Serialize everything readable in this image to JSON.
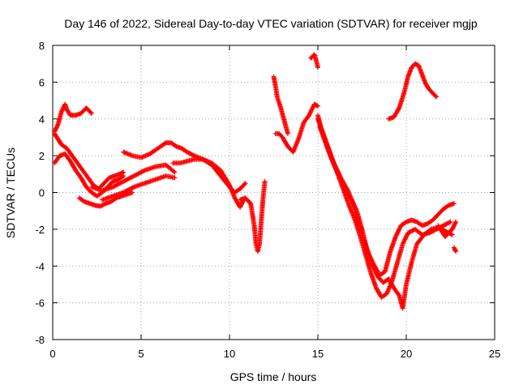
{
  "chart_data": {
    "type": "scatter",
    "title": "Day 146 of 2022, Sidereal Day-to-day VTEC variation (SDTVAR) for receiver mgjp",
    "xlabel": "GPS time / hours",
    "ylabel": "SDTVAR / TECUs",
    "xlim": [
      0,
      25
    ],
    "ylim": [
      -8,
      8
    ],
    "xticks": [
      0,
      5,
      10,
      15,
      20,
      25
    ],
    "yticks": [
      -8,
      -6,
      -4,
      -2,
      0,
      2,
      4,
      6,
      8
    ],
    "grid": true,
    "marker": "+",
    "color": "#ff0000",
    "series": [
      {
        "x": [
          0.1,
          0.3,
          0.5,
          0.7,
          0.8,
          1.0,
          1.3,
          1.6,
          1.9,
          2.2
        ],
        "y": [
          3.3,
          3.7,
          4.4,
          4.8,
          4.5,
          4.2,
          4.2,
          4.3,
          4.6,
          4.3
        ]
      },
      {
        "x": [
          0.1,
          0.3,
          0.5,
          0.8,
          1.1,
          1.4,
          1.7,
          2.0,
          2.3,
          2.6,
          2.9,
          3.2,
          3.5,
          3.8,
          4.0
        ],
        "y": [
          3.2,
          2.9,
          2.6,
          2.4,
          2.0,
          1.6,
          1.2,
          0.8,
          0.4,
          0.2,
          0.5,
          0.8,
          0.9,
          1.0,
          1.1
        ]
      },
      {
        "x": [
          0.1,
          0.4,
          0.7,
          1.0,
          1.3,
          1.6,
          1.9,
          2.2,
          2.5,
          2.8,
          3.1,
          3.4,
          3.7,
          4.0
        ],
        "y": [
          1.6,
          2.0,
          2.1,
          1.7,
          1.2,
          0.8,
          0.3,
          0.0,
          -0.2,
          0.0,
          0.3,
          0.6,
          0.7,
          0.9
        ]
      },
      {
        "x": [
          1.5,
          1.8,
          2.1,
          2.4,
          2.7,
          3.0,
          3.3,
          3.6,
          3.9,
          4.2,
          4.5
        ],
        "y": [
          -0.3,
          -0.5,
          -0.6,
          -0.7,
          -0.75,
          -0.6,
          -0.5,
          -0.3,
          -0.2,
          -0.1,
          0.0
        ]
      },
      {
        "x": [
          4.0,
          4.5,
          5.0,
          5.5,
          5.8,
          6.1,
          6.4,
          6.7,
          7.0,
          7.3,
          7.6,
          8.0,
          8.5,
          9.0,
          9.5,
          10.0,
          10.3,
          10.6,
          10.9
        ],
        "y": [
          2.2,
          2.0,
          1.9,
          2.1,
          2.3,
          2.5,
          2.7,
          2.7,
          2.5,
          2.4,
          2.2,
          2.0,
          1.8,
          1.5,
          0.9,
          0.3,
          0.0,
          0.2,
          0.5
        ]
      },
      {
        "x": [
          2.2,
          2.8,
          3.4,
          4.0,
          4.6,
          5.2,
          5.8,
          6.4,
          6.9
        ],
        "y": [
          0.3,
          0.1,
          0.3,
          0.6,
          0.9,
          1.2,
          1.4,
          1.5,
          1.1
        ]
      },
      {
        "x": [
          2.8,
          3.4,
          4.0,
          4.6,
          5.2,
          5.8,
          6.4,
          6.9
        ],
        "y": [
          -0.4,
          -0.2,
          0.0,
          0.3,
          0.5,
          0.7,
          0.9,
          0.8
        ]
      },
      {
        "x": [
          6.8,
          7.2,
          7.6,
          8.0,
          8.5,
          9.0,
          9.5,
          10.0,
          10.3,
          10.6,
          10.8
        ],
        "y": [
          1.6,
          1.6,
          1.7,
          1.8,
          1.8,
          1.6,
          1.2,
          0.4,
          -0.3,
          -0.8,
          -0.4
        ]
      },
      {
        "x": [
          10.6,
          10.9,
          11.2,
          11.4,
          11.5,
          11.6,
          11.7,
          11.8,
          11.9,
          12.0
        ],
        "y": [
          -0.4,
          -0.3,
          -0.6,
          -1.8,
          -2.8,
          -3.2,
          -2.8,
          -1.5,
          -0.3,
          0.6
        ]
      },
      {
        "x": [
          12.5,
          12.6,
          12.7,
          12.9,
          13.1,
          13.3
        ],
        "y": [
          6.3,
          5.8,
          5.2,
          4.6,
          3.9,
          3.2
        ]
      },
      {
        "x": [
          12.6,
          12.8,
          13.0,
          13.3,
          13.6,
          13.9,
          14.2,
          14.5,
          14.8,
          15.0
        ],
        "y": [
          3.2,
          3.2,
          3.0,
          2.5,
          2.2,
          2.9,
          3.8,
          4.2,
          4.8,
          4.7
        ]
      },
      {
        "x": [
          14.6,
          14.8,
          14.9,
          15.0
        ],
        "y": [
          7.3,
          7.5,
          7.2,
          6.8
        ]
      },
      {
        "x": [
          15.0,
          15.2,
          15.5,
          15.8,
          16.1,
          16.4,
          16.7,
          17.0,
          17.3,
          17.6,
          17.9,
          18.2,
          18.5,
          18.8,
          19.1,
          19.4,
          19.7,
          20.0,
          20.3,
          20.6,
          20.9,
          21.2,
          21.5,
          21.8,
          22.1,
          22.4,
          22.7
        ],
        "y": [
          4.2,
          3.4,
          2.6,
          1.8,
          1.2,
          0.6,
          0.1,
          -0.6,
          -1.6,
          -2.6,
          -3.4,
          -4.0,
          -4.5,
          -4.3,
          -3.2,
          -2.4,
          -1.8,
          -1.6,
          -1.5,
          -1.6,
          -1.8,
          -1.7,
          -1.5,
          -1.2,
          -0.9,
          -0.7,
          -0.6
        ]
      },
      {
        "x": [
          15.0,
          15.3,
          15.6,
          15.9,
          16.2,
          16.5,
          16.8,
          17.1,
          17.4,
          17.7,
          18.0,
          18.3,
          18.6,
          18.9,
          19.2,
          19.5,
          19.8,
          20.1,
          20.5,
          20.9,
          21.3,
          21.7,
          22.1,
          22.5
        ],
        "y": [
          4.0,
          3.2,
          2.4,
          1.6,
          0.8,
          0.0,
          -0.8,
          -1.5,
          -2.4,
          -3.4,
          -4.4,
          -5.2,
          -5.7,
          -5.5,
          -4.8,
          -3.8,
          -2.8,
          -2.2,
          -2.0,
          -2.3,
          -2.2,
          -2.0,
          -1.8,
          -1.6
        ]
      },
      {
        "x": [
          15.1,
          15.4,
          15.7,
          16.0,
          16.3,
          16.6,
          16.9,
          17.2,
          17.5,
          17.8,
          18.1,
          18.4,
          18.7,
          19.0,
          19.3,
          19.6,
          19.8,
          20.0,
          20.3,
          20.6,
          21.0,
          21.4,
          21.8,
          22.2,
          22.6
        ],
        "y": [
          3.6,
          2.8,
          2.0,
          1.3,
          0.7,
          0.1,
          -0.4,
          -1.0,
          -2.0,
          -3.2,
          -4.0,
          -4.6,
          -4.9,
          -4.7,
          -5.2,
          -5.6,
          -6.3,
          -5.0,
          -3.8,
          -2.8,
          -2.3,
          -2.0,
          -1.9,
          -2.1,
          -2.3
        ]
      },
      {
        "x": [
          21.8,
          22.2,
          22.6,
          22.8
        ],
        "y": [
          -1.8,
          -2.4,
          -2.0,
          -1.6
        ]
      },
      {
        "x": [
          22.7,
          22.8
        ],
        "y": [
          -3.0,
          -3.2
        ]
      },
      {
        "x": [
          19.0,
          19.3,
          19.6,
          19.9,
          20.1,
          20.3,
          20.5,
          20.7,
          20.9,
          21.1,
          21.3,
          21.5,
          21.7
        ],
        "y": [
          4.0,
          4.1,
          4.6,
          5.5,
          6.3,
          6.8,
          7.0,
          6.9,
          6.4,
          5.9,
          5.6,
          5.4,
          5.2
        ]
      }
    ]
  }
}
